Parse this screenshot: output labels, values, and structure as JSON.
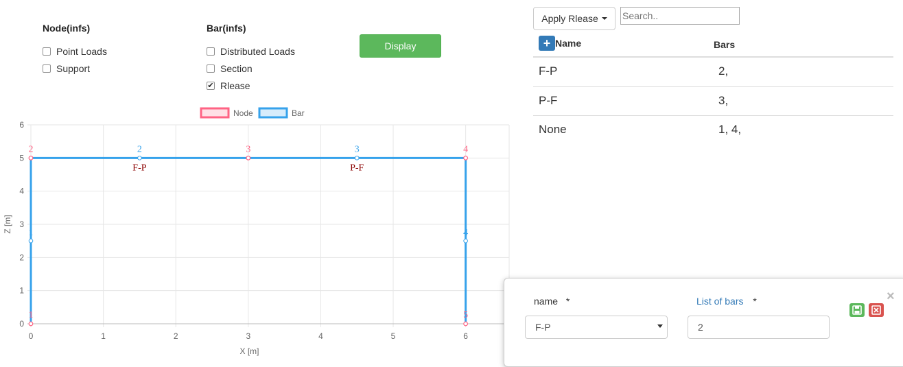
{
  "options": {
    "node": {
      "title": "Node(infs)",
      "items": [
        {
          "label": "Point Loads",
          "checked": false
        },
        {
          "label": "Support",
          "checked": false
        }
      ]
    },
    "bar": {
      "title": "Bar(infs)",
      "items": [
        {
          "label": "Distributed Loads",
          "checked": false
        },
        {
          "label": "Section",
          "checked": false
        },
        {
          "label": "Rlease",
          "checked": true
        }
      ]
    },
    "display_label": "Display"
  },
  "chart_data": {
    "type": "line",
    "xlabel": "X [m]",
    "ylabel": "Z [m]",
    "xlim": [
      0,
      6.6
    ],
    "ylim": [
      0,
      6
    ],
    "x_ticks": [
      "0",
      "1",
      "2",
      "3",
      "4",
      "5",
      "6"
    ],
    "y_ticks": [
      "0",
      "1",
      "2",
      "3",
      "4",
      "5",
      "6"
    ],
    "legend": [
      {
        "name": "Node",
        "color": "#ff6384"
      },
      {
        "name": "Bar",
        "color": "#36a2eb"
      }
    ],
    "legend_position": "top",
    "grid": true,
    "nodes": [
      {
        "id": "1",
        "x": 0,
        "y": 0
      },
      {
        "id": "2",
        "x": 0,
        "y": 5
      },
      {
        "id": "3",
        "x": 3,
        "y": 5
      },
      {
        "id": "4",
        "x": 6,
        "y": 5
      },
      {
        "id": "5",
        "x": 6,
        "y": 0
      }
    ],
    "bars": [
      {
        "id": "1",
        "from": [
          0,
          0
        ],
        "to": [
          0,
          5
        ],
        "mid": [
          0,
          2.5
        ],
        "release": ""
      },
      {
        "id": "2",
        "from": [
          0,
          5
        ],
        "to": [
          3,
          5
        ],
        "mid": [
          1.5,
          5
        ],
        "release": "F-P"
      },
      {
        "id": "3",
        "from": [
          3,
          5
        ],
        "to": [
          6,
          5
        ],
        "mid": [
          4.5,
          5
        ],
        "release": "P-F"
      },
      {
        "id": "4",
        "from": [
          6,
          5
        ],
        "to": [
          6,
          0
        ],
        "mid": [
          6,
          2.5
        ],
        "release": ""
      }
    ]
  },
  "release_panel": {
    "apply_label": "Apply Rlease",
    "search_placeholder": "Search..",
    "headers": {
      "name": "Name",
      "bars": "Bars"
    },
    "rows": [
      {
        "name": "F-P",
        "bars": "2,"
      },
      {
        "name": "P-F",
        "bars": "3,"
      },
      {
        "name": "None",
        "bars": "1, 4,"
      }
    ]
  },
  "popup": {
    "name_label": "name",
    "name_required": "*",
    "bars_label": "List of bars",
    "bars_required": "*",
    "name_value": "F-P",
    "bars_value": "2",
    "close_glyph": "×"
  },
  "colors": {
    "node": "#ff6384",
    "bar": "#36a2eb",
    "release_text": "#8b0000",
    "success": "#5cb85c",
    "danger": "#d9534f",
    "primary": "#337ab7"
  }
}
